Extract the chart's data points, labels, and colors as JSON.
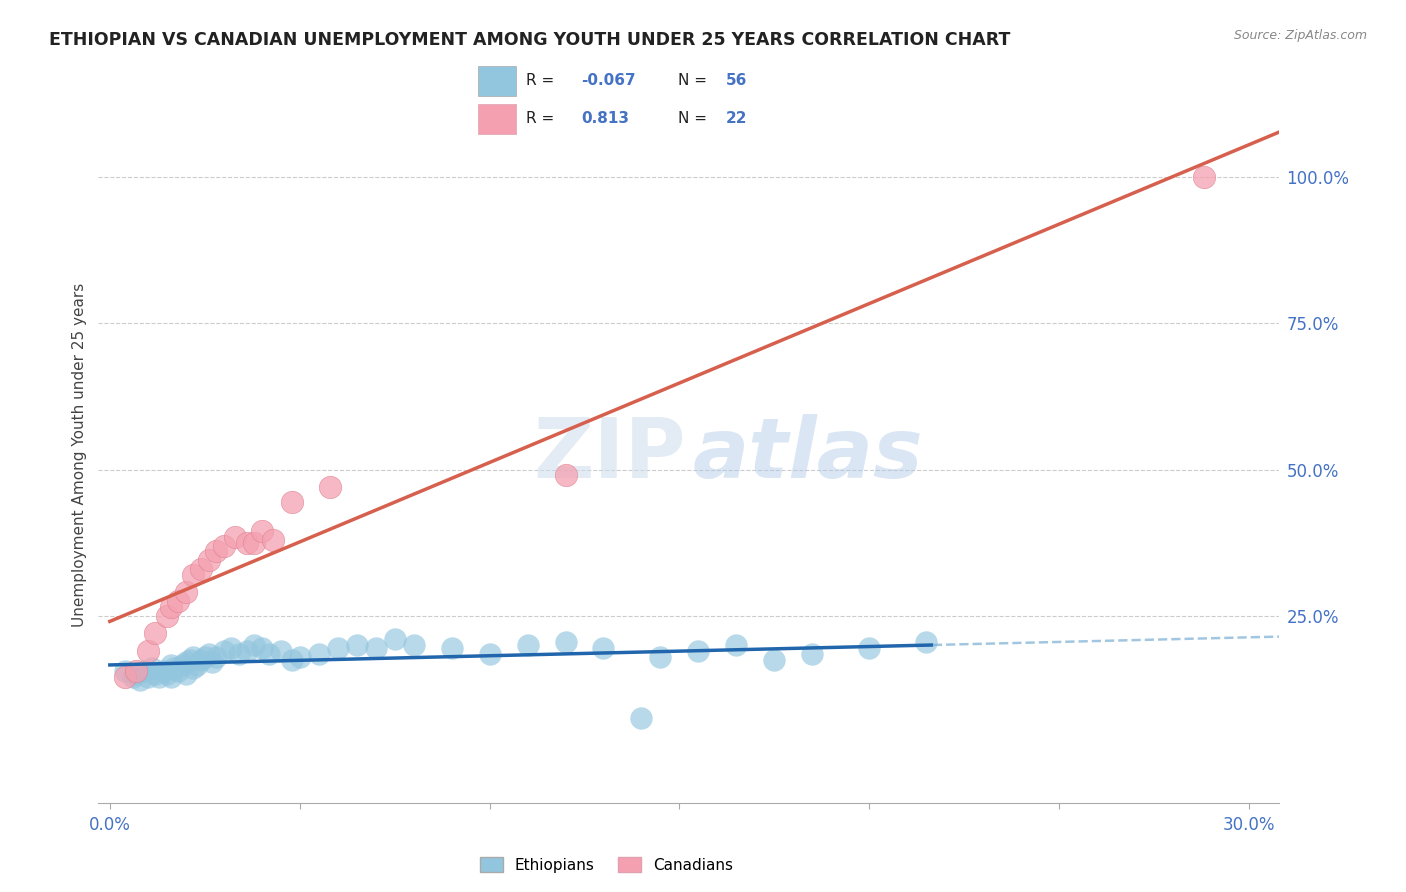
{
  "title": "ETHIOPIAN VS CANADIAN UNEMPLOYMENT AMONG YOUTH UNDER 25 YEARS CORRELATION CHART",
  "source": "Source: ZipAtlas.com",
  "ylabel": "Unemployment Among Youth under 25 years",
  "ytick_labels": [
    "100.0%",
    "75.0%",
    "50.0%",
    "25.0%"
  ],
  "ytick_values": [
    1.0,
    0.75,
    0.5,
    0.25
  ],
  "xlim": [
    -0.003,
    0.308
  ],
  "ylim": [
    -0.07,
    1.12
  ],
  "legend_r1": "-0.067",
  "legend_n1": "56",
  "legend_r2": "0.813",
  "legend_n2": "22",
  "blue_color": "#92c5de",
  "pink_color": "#f4a0b0",
  "blue_line_color": "#2166ac",
  "pink_line_color": "#d6604d",
  "ethiopians_x": [
    0.004,
    0.006,
    0.007,
    0.008,
    0.009,
    0.01,
    0.011,
    0.012,
    0.013,
    0.014,
    0.015,
    0.016,
    0.016,
    0.017,
    0.018,
    0.019,
    0.02,
    0.02,
    0.021,
    0.022,
    0.022,
    0.023,
    0.024,
    0.025,
    0.026,
    0.027,
    0.028,
    0.03,
    0.032,
    0.034,
    0.036,
    0.038,
    0.04,
    0.042,
    0.045,
    0.048,
    0.05,
    0.055,
    0.06,
    0.065,
    0.07,
    0.075,
    0.08,
    0.09,
    0.1,
    0.11,
    0.12,
    0.13,
    0.145,
    0.155,
    0.165,
    0.175,
    0.185,
    0.2,
    0.215,
    0.14
  ],
  "ethiopians_y": [
    0.155,
    0.145,
    0.15,
    0.14,
    0.155,
    0.145,
    0.16,
    0.15,
    0.145,
    0.155,
    0.15,
    0.165,
    0.145,
    0.16,
    0.155,
    0.165,
    0.17,
    0.15,
    0.175,
    0.16,
    0.18,
    0.165,
    0.175,
    0.18,
    0.185,
    0.17,
    0.18,
    0.19,
    0.195,
    0.185,
    0.19,
    0.2,
    0.195,
    0.185,
    0.19,
    0.175,
    0.18,
    0.185,
    0.195,
    0.2,
    0.195,
    0.21,
    0.2,
    0.195,
    0.185,
    0.2,
    0.205,
    0.195,
    0.18,
    0.19,
    0.2,
    0.175,
    0.185,
    0.195,
    0.205,
    0.075
  ],
  "canadians_x": [
    0.004,
    0.007,
    0.01,
    0.012,
    0.015,
    0.016,
    0.018,
    0.02,
    0.022,
    0.024,
    0.026,
    0.028,
    0.03,
    0.033,
    0.036,
    0.038,
    0.04,
    0.043,
    0.048,
    0.058,
    0.12,
    0.288
  ],
  "canadians_y": [
    0.145,
    0.155,
    0.19,
    0.22,
    0.25,
    0.265,
    0.275,
    0.29,
    0.32,
    0.33,
    0.345,
    0.36,
    0.37,
    0.385,
    0.375,
    0.375,
    0.395,
    0.38,
    0.445,
    0.47,
    0.49,
    1.0
  ]
}
